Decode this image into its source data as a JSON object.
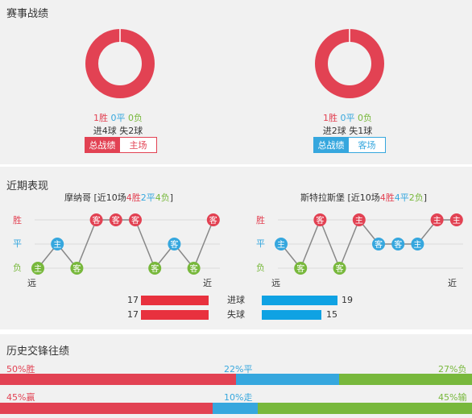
{
  "recent_record": {
    "title": "赛事战绩",
    "home": {
      "w": "1胜",
      "d": "0平",
      "l": "0负",
      "goals_for": "进4球",
      "goals_against": "失2球",
      "tab_active": "总战绩",
      "tab_other": "主场",
      "win_fraction": 1.0
    },
    "away": {
      "w": "1胜",
      "d": "0平",
      "l": "0负",
      "goals_for": "进2球",
      "goals_against": "失1球",
      "tab_active": "总战绩",
      "tab_other": "客场",
      "win_fraction": 1.0
    }
  },
  "recent_form": {
    "title": "近期表现",
    "y_labels": [
      "胜",
      "平",
      "负"
    ],
    "far": "远",
    "near": "近",
    "home": {
      "team": "摩纳哥",
      "summary_pre": "[近10场",
      "w": "4胜",
      "d": "2平",
      "l": "4负",
      "summary_post": "]",
      "results": [
        "L",
        "D",
        "L",
        "W",
        "W",
        "W",
        "L",
        "D",
        "L",
        "W"
      ],
      "venues": [
        "主",
        "主",
        "客",
        "客",
        "客",
        "客",
        "客",
        "客",
        "客",
        "客"
      ]
    },
    "away": {
      "team": "斯特拉斯堡",
      "summary_pre": "[近10场",
      "w": "4胜",
      "d": "4平",
      "l": "2负",
      "summary_post": "]",
      "results": [
        "D",
        "L",
        "W",
        "L",
        "W",
        "D",
        "D",
        "D",
        "W",
        "W"
      ],
      "venues": [
        "主",
        "客",
        "客",
        "客",
        "主",
        "客",
        "客",
        "主",
        "主",
        "主"
      ]
    },
    "goals_scored": {
      "label": "进球",
      "home": "17",
      "away": "19",
      "home_value": 17,
      "away_value": 19
    },
    "goals_conceded": {
      "label": "失球",
      "home": "17",
      "away": "15",
      "home_value": 17,
      "away_value": 15
    }
  },
  "h2h": {
    "title": "历史交锋往绩",
    "row1": {
      "left": "50%胜",
      "mid": "22%平",
      "right": "27%负",
      "p1": 50,
      "p2": 22,
      "p3": 27
    },
    "row2": {
      "left": "45%赢",
      "mid": "10%走",
      "right": "45%输",
      "p1": 45,
      "p2": 10,
      "p3": 45
    }
  },
  "colors": {
    "red": "#e24253",
    "blue": "#36a7de",
    "green": "#78b83c",
    "bar_red": "#e8313e",
    "bar_blue": "#0fa2e3",
    "track": "#d9d9d9"
  }
}
